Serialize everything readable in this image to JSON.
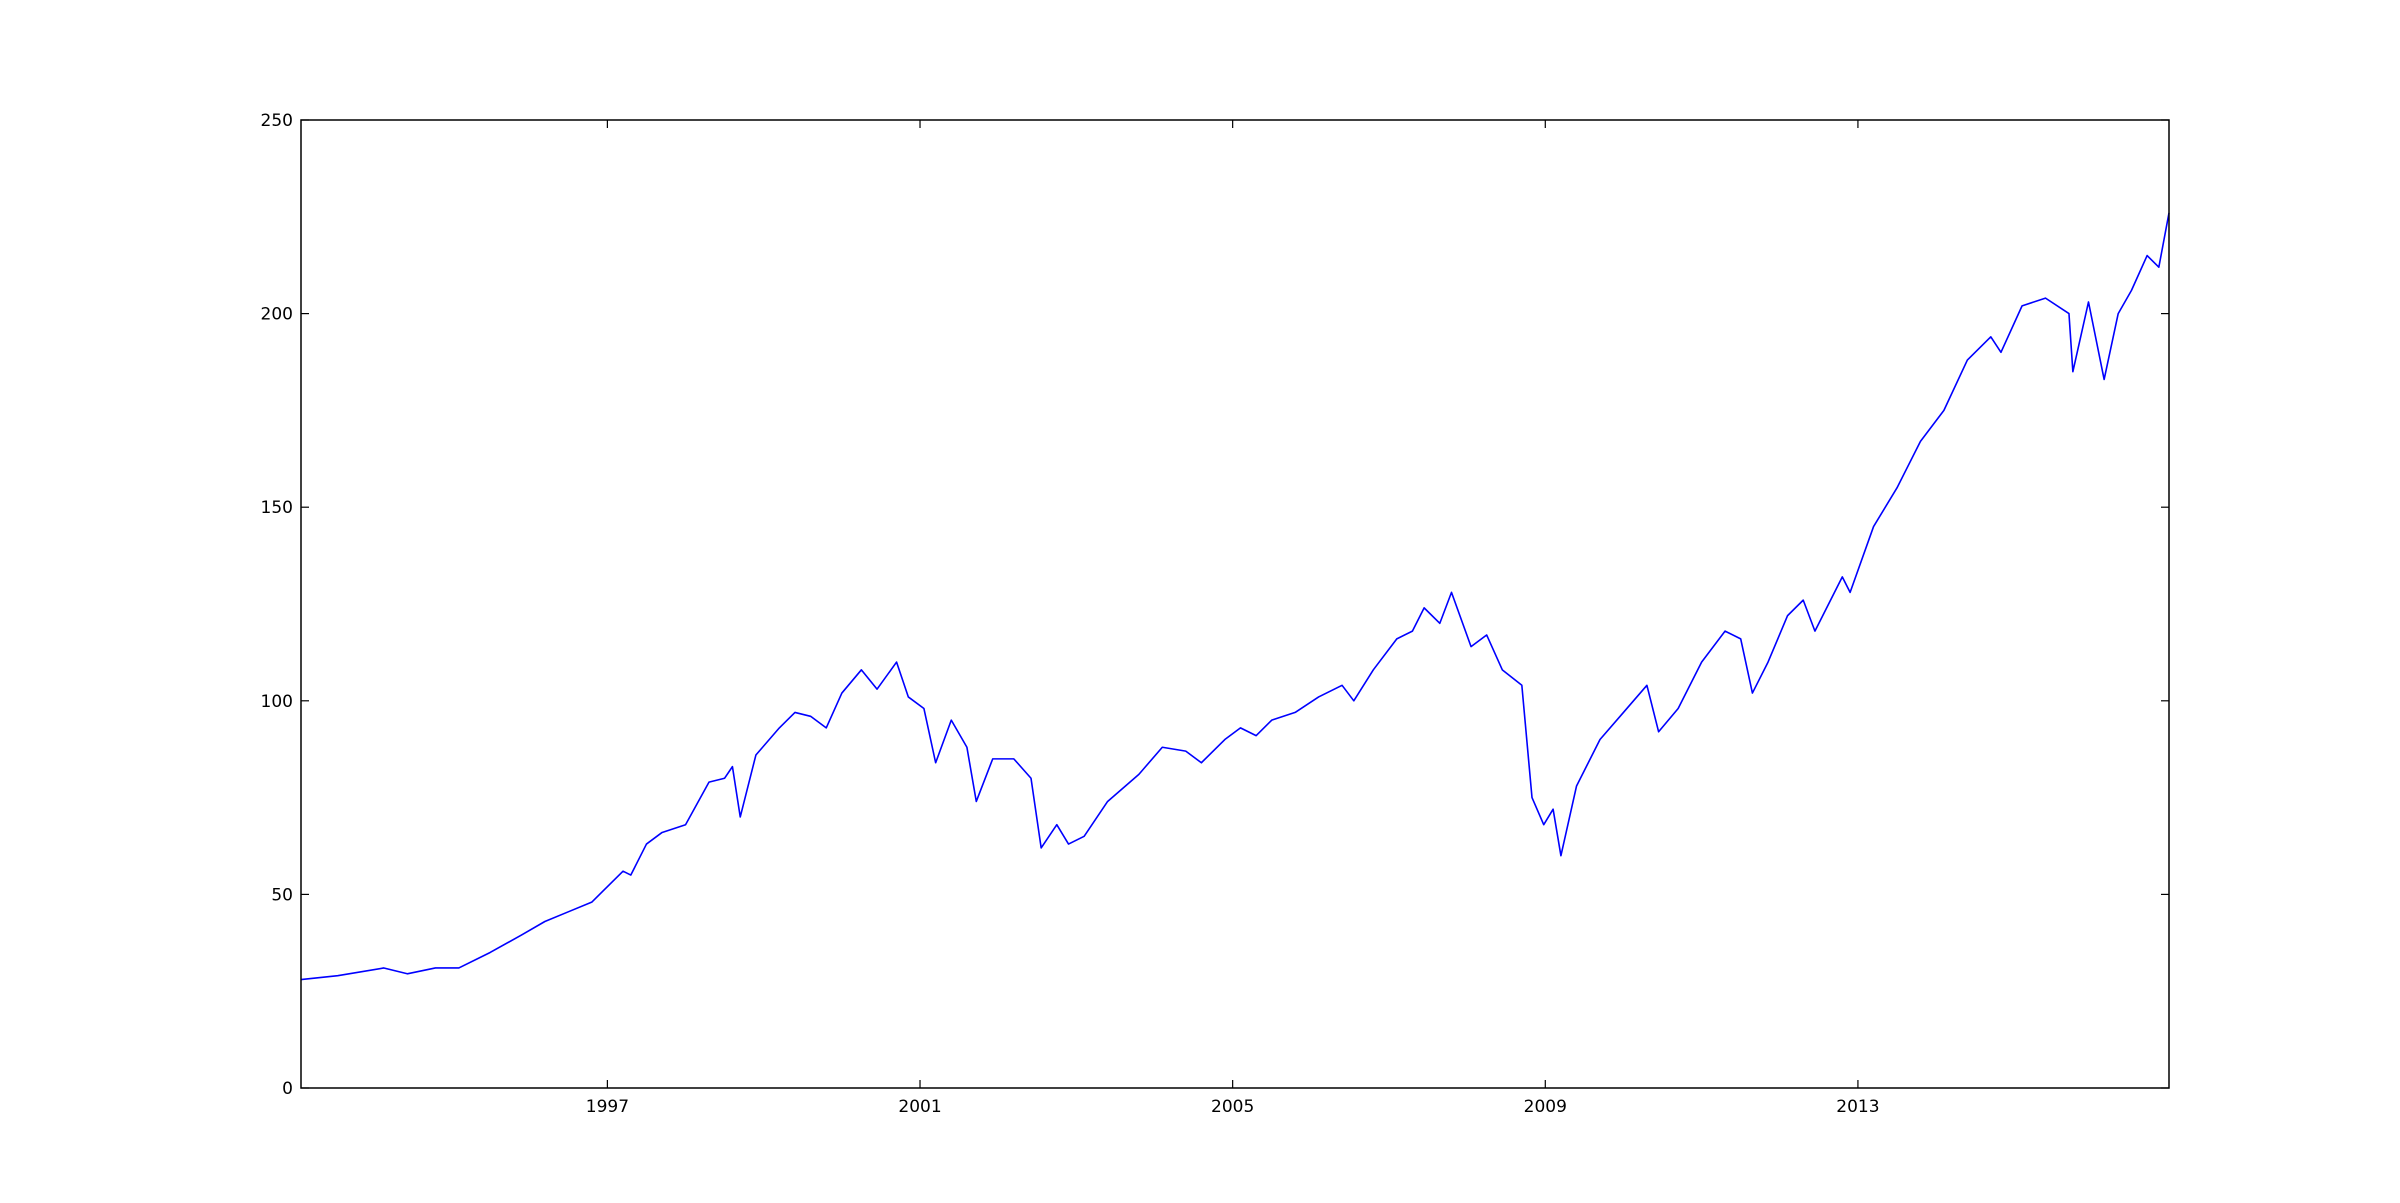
{
  "chart_data": {
    "type": "line",
    "x": [
      1993.08,
      1993.55,
      1994.14,
      1994.44,
      1994.8,
      1995.1,
      1995.5,
      1995.9,
      1996.2,
      1996.5,
      1996.8,
      1997.0,
      1997.2,
      1997.3,
      1997.5,
      1997.7,
      1998.0,
      1998.3,
      1998.5,
      1998.6,
      1998.7,
      1998.9,
      1999.2,
      1999.4,
      1999.6,
      1999.8,
      2000.0,
      2000.25,
      2000.45,
      2000.7,
      2000.85,
      2001.05,
      2001.2,
      2001.4,
      2001.6,
      2001.72,
      2001.93,
      2002.2,
      2002.42,
      2002.55,
      2002.75,
      2002.9,
      2003.1,
      2003.4,
      2003.8,
      2004.1,
      2004.4,
      2004.6,
      2004.9,
      2005.1,
      2005.3,
      2005.5,
      2005.8,
      2006.1,
      2006.4,
      2006.55,
      2006.8,
      2007.1,
      2007.3,
      2007.45,
      2007.65,
      2007.8,
      2008.05,
      2008.25,
      2008.45,
      2008.7,
      2008.83,
      2008.98,
      2009.1,
      2009.2,
      2009.4,
      2009.7,
      2010.0,
      2010.3,
      2010.45,
      2010.7,
      2011.0,
      2011.3,
      2011.5,
      2011.65,
      2011.85,
      2012.1,
      2012.3,
      2012.45,
      2012.8,
      2012.9,
      2013.2,
      2013.5,
      2013.8,
      2014.1,
      2014.4,
      2014.7,
      2014.83,
      2015.1,
      2015.4,
      2015.7,
      2015.75,
      2015.95,
      2016.15,
      2016.33,
      2016.5,
      2016.7,
      2016.85,
      2016.98
    ],
    "series": [
      {
        "color": "#0000ff",
        "values": [
          28,
          29,
          31,
          29.5,
          31,
          31,
          35,
          39.5,
          43,
          45.5,
          48,
          52,
          56,
          55,
          63,
          66,
          68,
          79,
          80,
          83,
          70,
          86,
          93,
          97,
          96,
          93,
          102,
          108,
          103,
          110,
          101,
          98,
          84,
          95,
          88,
          74,
          85,
          85,
          80,
          62,
          68,
          63,
          65,
          74,
          81,
          88,
          87,
          84,
          90,
          93,
          91,
          95,
          97,
          101,
          104,
          100,
          108,
          116,
          118,
          124,
          120,
          128,
          114,
          117,
          108,
          104,
          75,
          68,
          72,
          60,
          78,
          90,
          97,
          104,
          92,
          98,
          110,
          118,
          116,
          102,
          110,
          122,
          126,
          118,
          132,
          128,
          145,
          155,
          167,
          175,
          188,
          194,
          190,
          202,
          204,
          200,
          185,
          203,
          183,
          200,
          206,
          215,
          212,
          226
        ]
      }
    ],
    "xlim": [
      1993.08,
      2016.98
    ],
    "xticks": [
      1997,
      2001,
      2005,
      2009,
      2013
    ],
    "ylim": [
      0,
      250
    ],
    "yticks": [
      0,
      50,
      100,
      150,
      200,
      250
    ]
  }
}
